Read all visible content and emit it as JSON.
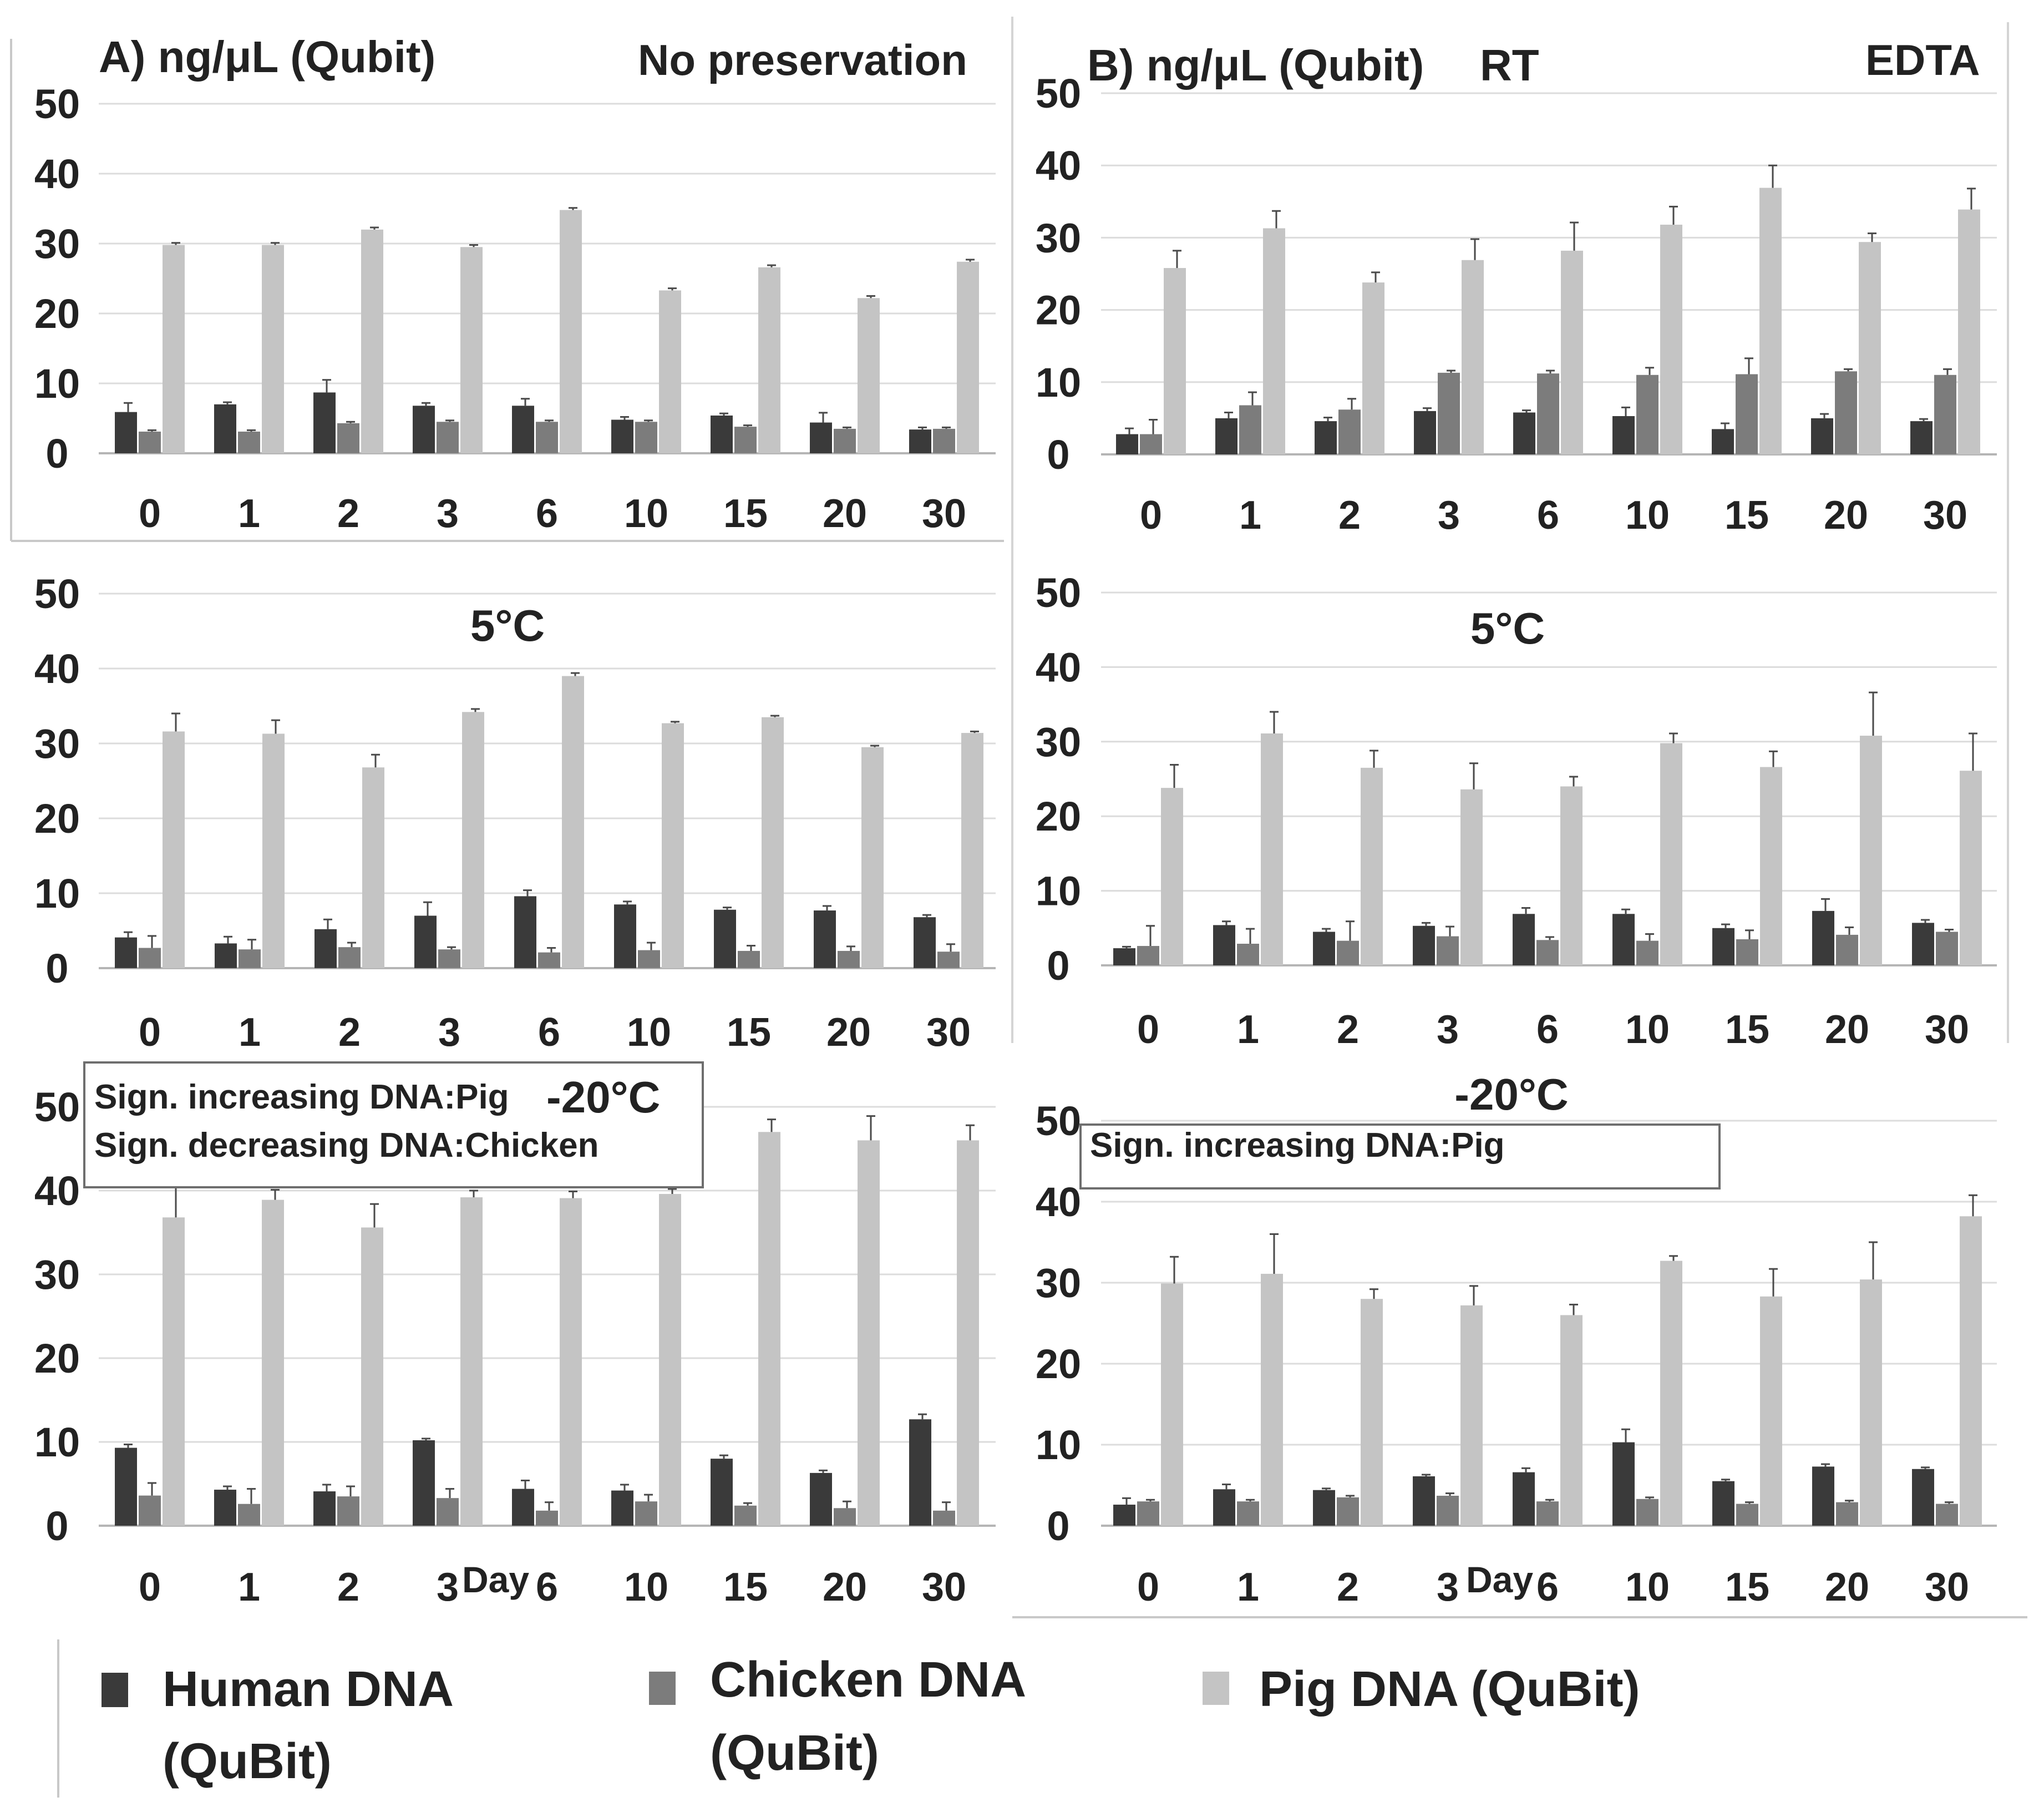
{
  "colors": {
    "human": "#3a3a3a",
    "chicken": "#7c7c7c",
    "pig": "#c4c4c4",
    "grid": "#dcdcdc",
    "axis": "#b5b5b5",
    "frame": "#c8c8c8",
    "text": "#222222"
  },
  "panel_titles": {
    "a_prefix": "A) ng/μL (Qubit)",
    "a_right": "No preservation",
    "b_prefix": "B) ng/μL (Qubit)",
    "b_mid": "RT",
    "b_right": "EDTA",
    "a_5c": "5°C",
    "b_5c": "5°C",
    "a_m20": "-20°C",
    "b_m20": "-20°C"
  },
  "notes": {
    "a_m20_line1": "Sign. increasing DNA:Pig",
    "a_m20_line2": "Sign. decreasing DNA:Chicken",
    "b_m20_line1": "Sign. increasing DNA:Pig"
  },
  "x_axis_title": "Day",
  "legend": {
    "human_line1": "Human DNA",
    "human_line2": "(QuBit)",
    "chicken_line1": "Chicken DNA",
    "chicken_line2": "(QuBit)",
    "pig": "Pig DNA (QuBit)"
  },
  "chart_data": [
    {
      "id": "A-RT",
      "type": "bar",
      "title": "A) ng/μL (Qubit) — No preservation",
      "xlabel": "",
      "ylabel": "ng/μL",
      "ylim": [
        0,
        50
      ],
      "yticks": [
        0,
        10,
        20,
        30,
        40,
        50
      ],
      "categories": [
        "0",
        "1",
        "2",
        "3",
        "6",
        "10",
        "15",
        "20",
        "30"
      ],
      "series": [
        {
          "name": "Human DNA (QuBit)",
          "values": [
            5.9,
            7.0,
            8.7,
            6.8,
            6.8,
            4.8,
            5.4,
            4.4,
            3.4
          ],
          "errors": [
            1.3,
            0.3,
            1.8,
            0.4,
            1.0,
            0.4,
            0.3,
            1.4,
            0.3
          ]
        },
        {
          "name": "Chicken DNA (QuBit)",
          "values": [
            3.1,
            3.1,
            4.3,
            4.5,
            4.5,
            4.5,
            3.8,
            3.5,
            3.5
          ],
          "errors": [
            0.2,
            0.2,
            0.2,
            0.2,
            0.2,
            0.2,
            0.2,
            0.2,
            0.2
          ]
        },
        {
          "name": "Pig DNA (QuBit)",
          "values": [
            29.8,
            29.8,
            32.0,
            29.5,
            34.8,
            23.3,
            26.6,
            22.2,
            27.4
          ],
          "errors": [
            0.3,
            0.3,
            0.3,
            0.3,
            0.3,
            0.3,
            0.3,
            0.3,
            0.3
          ]
        }
      ]
    },
    {
      "id": "B-RT",
      "type": "bar",
      "title": "B) ng/μL (Qubit) RT — EDTA",
      "xlabel": "",
      "ylabel": "ng/μL",
      "ylim": [
        0,
        50
      ],
      "yticks": [
        0,
        10,
        20,
        30,
        40,
        50
      ],
      "categories": [
        "0",
        "1",
        "2",
        "3",
        "6",
        "10",
        "15",
        "20",
        "30"
      ],
      "series": [
        {
          "name": "Human DNA (QuBit)",
          "values": [
            2.8,
            5.0,
            4.6,
            6.0,
            5.8,
            5.3,
            3.5,
            5.0,
            4.6
          ],
          "errors": [
            0.8,
            0.8,
            0.5,
            0.4,
            0.3,
            1.2,
            0.8,
            0.6,
            0.3
          ]
        },
        {
          "name": "Chicken DNA (QuBit)",
          "values": [
            2.8,
            6.8,
            6.2,
            11.3,
            11.2,
            11.0,
            11.1,
            11.5,
            11.0
          ],
          "errors": [
            2.0,
            1.8,
            1.5,
            0.3,
            0.4,
            1.0,
            2.2,
            0.3,
            0.8
          ]
        },
        {
          "name": "Pig DNA (QuBit)",
          "values": [
            25.8,
            31.3,
            23.8,
            26.9,
            28.2,
            31.8,
            36.9,
            29.4,
            33.9
          ],
          "errors": [
            2.4,
            2.4,
            1.4,
            2.9,
            3.9,
            2.5,
            3.1,
            1.2,
            2.9
          ]
        }
      ]
    },
    {
      "id": "A-5C",
      "type": "bar",
      "title": "5°C",
      "xlabel": "",
      "ylabel": "ng/μL",
      "ylim": [
        0,
        50
      ],
      "yticks": [
        0,
        10,
        20,
        30,
        40,
        50
      ],
      "categories": [
        "0",
        "1",
        "2",
        "3",
        "6",
        "10",
        "15",
        "20",
        "30"
      ],
      "series": [
        {
          "name": "Human DNA (QuBit)",
          "values": [
            4.1,
            3.3,
            5.2,
            7.0,
            9.6,
            8.5,
            7.8,
            7.7,
            6.8
          ],
          "errors": [
            0.7,
            0.9,
            1.3,
            1.8,
            0.8,
            0.4,
            0.3,
            0.6,
            0.3
          ]
        },
        {
          "name": "Chicken DNA (QuBit)",
          "values": [
            2.7,
            2.5,
            2.8,
            2.5,
            2.1,
            2.4,
            2.3,
            2.3,
            2.2
          ],
          "errors": [
            1.6,
            1.3,
            0.6,
            0.3,
            0.6,
            1.0,
            0.7,
            0.6,
            1.0
          ]
        },
        {
          "name": "Pig DNA (QuBit)",
          "values": [
            31.6,
            31.3,
            26.8,
            34.2,
            39.0,
            32.7,
            33.5,
            29.5,
            31.4
          ],
          "errors": [
            2.4,
            1.8,
            1.7,
            0.4,
            0.4,
            0.2,
            0.2,
            0.2,
            0.2
          ]
        }
      ]
    },
    {
      "id": "B-5C",
      "type": "bar",
      "title": "5°C",
      "xlabel": "",
      "ylabel": "ng/μL",
      "ylim": [
        0,
        50
      ],
      "yticks": [
        0,
        10,
        20,
        30,
        40,
        50
      ],
      "categories": [
        "0",
        "1",
        "2",
        "3",
        "6",
        "10",
        "15",
        "20",
        "30"
      ],
      "series": [
        {
          "name": "Human DNA (QuBit)",
          "values": [
            2.3,
            5.4,
            4.5,
            5.3,
            6.9,
            6.9,
            5.0,
            7.3,
            5.7
          ],
          "errors": [
            0.2,
            0.5,
            0.4,
            0.4,
            0.8,
            0.6,
            0.5,
            1.6,
            0.4
          ]
        },
        {
          "name": "Chicken DNA (QuBit)",
          "values": [
            2.6,
            2.9,
            3.3,
            3.9,
            3.4,
            3.3,
            3.5,
            4.1,
            4.5
          ],
          "errors": [
            2.7,
            2.0,
            2.6,
            1.3,
            0.4,
            0.9,
            1.2,
            1.0,
            0.3
          ]
        },
        {
          "name": "Pig DNA (QuBit)",
          "values": [
            23.8,
            31.1,
            26.5,
            23.6,
            24.0,
            29.8,
            26.6,
            30.8,
            26.1
          ],
          "errors": [
            3.1,
            2.9,
            2.3,
            3.5,
            1.3,
            1.3,
            2.1,
            5.8,
            5.0
          ]
        }
      ]
    },
    {
      "id": "A-m20C",
      "type": "bar",
      "title": "-20°C",
      "xlabel": "Day",
      "ylabel": "ng/μL",
      "ylim": [
        0,
        50
      ],
      "yticks": [
        0,
        10,
        20,
        30,
        40,
        50
      ],
      "categories": [
        "0",
        "1",
        "2",
        "3",
        "6",
        "10",
        "15",
        "20",
        "30"
      ],
      "series": [
        {
          "name": "Human DNA (QuBit)",
          "values": [
            9.3,
            4.3,
            4.1,
            10.2,
            4.4,
            4.2,
            8.0,
            6.3,
            12.7
          ],
          "errors": [
            0.4,
            0.4,
            0.8,
            0.2,
            1.0,
            0.7,
            0.4,
            0.3,
            0.6
          ]
        },
        {
          "name": "Chicken DNA (QuBit)",
          "values": [
            3.6,
            2.6,
            3.5,
            3.3,
            1.8,
            2.9,
            2.4,
            2.1,
            1.8
          ],
          "errors": [
            1.5,
            1.8,
            1.2,
            1.1,
            1.0,
            0.8,
            0.3,
            0.8,
            1.0
          ]
        },
        {
          "name": "Pig DNA (QuBit)",
          "values": [
            36.8,
            38.9,
            35.6,
            39.2,
            39.1,
            39.6,
            47.0,
            46.0,
            46.0
          ],
          "errors": [
            3.9,
            1.2,
            2.8,
            0.8,
            0.8,
            0.6,
            1.5,
            2.9,
            1.8
          ]
        }
      ]
    },
    {
      "id": "B-m20C",
      "type": "bar",
      "title": "-20°C",
      "xlabel": "Day",
      "ylabel": "ng/μL",
      "ylim": [
        0,
        50
      ],
      "yticks": [
        0,
        10,
        20,
        30,
        40,
        50
      ],
      "categories": [
        "0",
        "1",
        "2",
        "3",
        "6",
        "10",
        "15",
        "20",
        "30"
      ],
      "series": [
        {
          "name": "Human DNA (QuBit)",
          "values": [
            2.6,
            4.5,
            4.4,
            6.1,
            6.6,
            10.3,
            5.5,
            7.3,
            7.0
          ],
          "errors": [
            0.8,
            0.6,
            0.2,
            0.2,
            0.5,
            1.6,
            0.2,
            0.3,
            0.2
          ]
        },
        {
          "name": "Chicken DNA (QuBit)",
          "values": [
            3.0,
            3.0,
            3.5,
            3.7,
            3.0,
            3.3,
            2.7,
            2.9,
            2.7
          ],
          "errors": [
            0.2,
            0.2,
            0.2,
            0.3,
            0.2,
            0.2,
            0.2,
            0.2,
            0.2
          ]
        },
        {
          "name": "Pig DNA (QuBit)",
          "values": [
            29.9,
            31.1,
            28.0,
            27.2,
            26.0,
            32.7,
            28.3,
            30.4,
            38.2
          ],
          "errors": [
            3.3,
            4.9,
            1.2,
            2.4,
            1.3,
            0.6,
            3.4,
            4.6,
            2.6
          ]
        }
      ]
    }
  ]
}
